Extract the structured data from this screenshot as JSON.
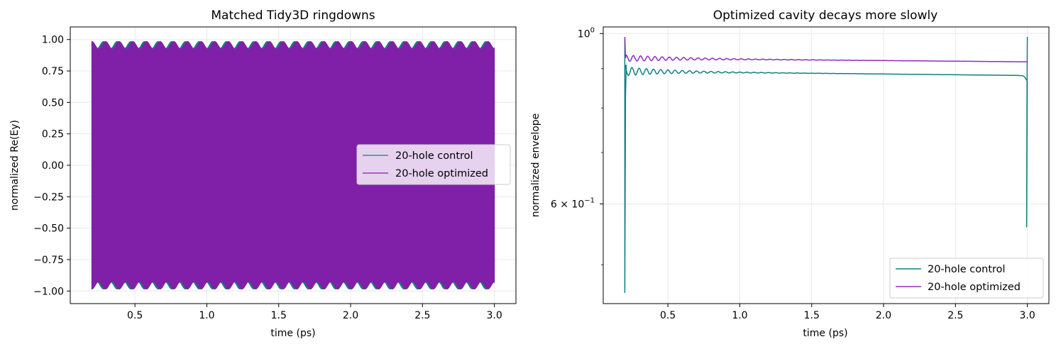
{
  "chart_data": [
    {
      "type": "line",
      "title": "Matched Tidy3D ringdowns",
      "xlabel": "time (ps)",
      "ylabel": "normalized Re(Ey)",
      "xlim": [
        0.05,
        3.15
      ],
      "ylim": [
        -1.1,
        1.1
      ],
      "xticks": [
        0.5,
        1.0,
        1.5,
        2.0,
        2.5,
        3.0
      ],
      "xtick_labels": [
        "0.5",
        "1.0",
        "1.5",
        "2.0",
        "2.5",
        "3.0"
      ],
      "yticks": [
        1.0,
        0.75,
        0.5,
        0.25,
        0.0,
        -0.25,
        -0.5,
        -0.75,
        -1.0
      ],
      "ytick_labels": [
        "1.00",
        "0.75",
        "0.50",
        "0.25",
        "0.00",
        "−0.25",
        "−0.50",
        "−0.75",
        "−1.00"
      ],
      "grid": true,
      "legend_position": "center-right",
      "series": [
        {
          "name": "20-hole control",
          "color": "#118080",
          "x_range": [
            0.2,
            3.0
          ],
          "envelope_mean": 0.955,
          "envelope_ripple": 0.03,
          "beat_period_ps": 0.095
        },
        {
          "name": "20-hole optimized",
          "color": "#8020a8",
          "x_range": [
            0.2,
            3.0
          ],
          "envelope_mean": 0.955,
          "envelope_ripple": 0.03,
          "beat_period_ps": 0.095
        }
      ]
    },
    {
      "type": "line",
      "title": "Optimized cavity decays more slowly",
      "xlabel": "time (ps)",
      "ylabel": "normalized envelope",
      "y_scale": "log",
      "xlim": [
        0.05,
        3.15
      ],
      "ylim": [
        0.445,
        1.02
      ],
      "xticks": [
        0.5,
        1.0,
        1.5,
        2.0,
        2.5,
        3.0
      ],
      "xtick_labels": [
        "0.5",
        "1.0",
        "1.5",
        "2.0",
        "2.5",
        "3.0"
      ],
      "ytick_labels": [
        {
          "value": 1.0,
          "base": "10",
          "exp": "0"
        },
        {
          "value": 0.6,
          "base": "6 × 10",
          "exp": "−1"
        }
      ],
      "grid": true,
      "legend_position": "lower-right",
      "series": [
        {
          "name": "20-hole control",
          "color": "#118080",
          "x": [
            0.2,
            0.21,
            0.22,
            0.25,
            0.3,
            0.4,
            0.5,
            0.75,
            1.0,
            1.5,
            2.0,
            2.5,
            2.9,
            2.97,
            2.99,
            3.0
          ],
          "y": [
            0.985,
            0.91,
            0.9,
            0.895,
            0.893,
            0.89,
            0.888,
            0.887,
            0.885,
            0.884,
            0.883,
            0.882,
            0.88,
            0.875,
            0.86,
            0.99
          ]
        },
        {
          "name": "20-hole optimized",
          "color": "#8f2cc0",
          "x": [
            0.2,
            0.21,
            0.25,
            0.3,
            0.4,
            0.5,
            1.0,
            1.5,
            2.0,
            2.5,
            3.0
          ],
          "y": [
            0.99,
            0.935,
            0.928,
            0.927,
            0.925,
            0.924,
            0.922,
            0.921,
            0.92,
            0.919,
            0.918
          ]
        }
      ]
    }
  ]
}
